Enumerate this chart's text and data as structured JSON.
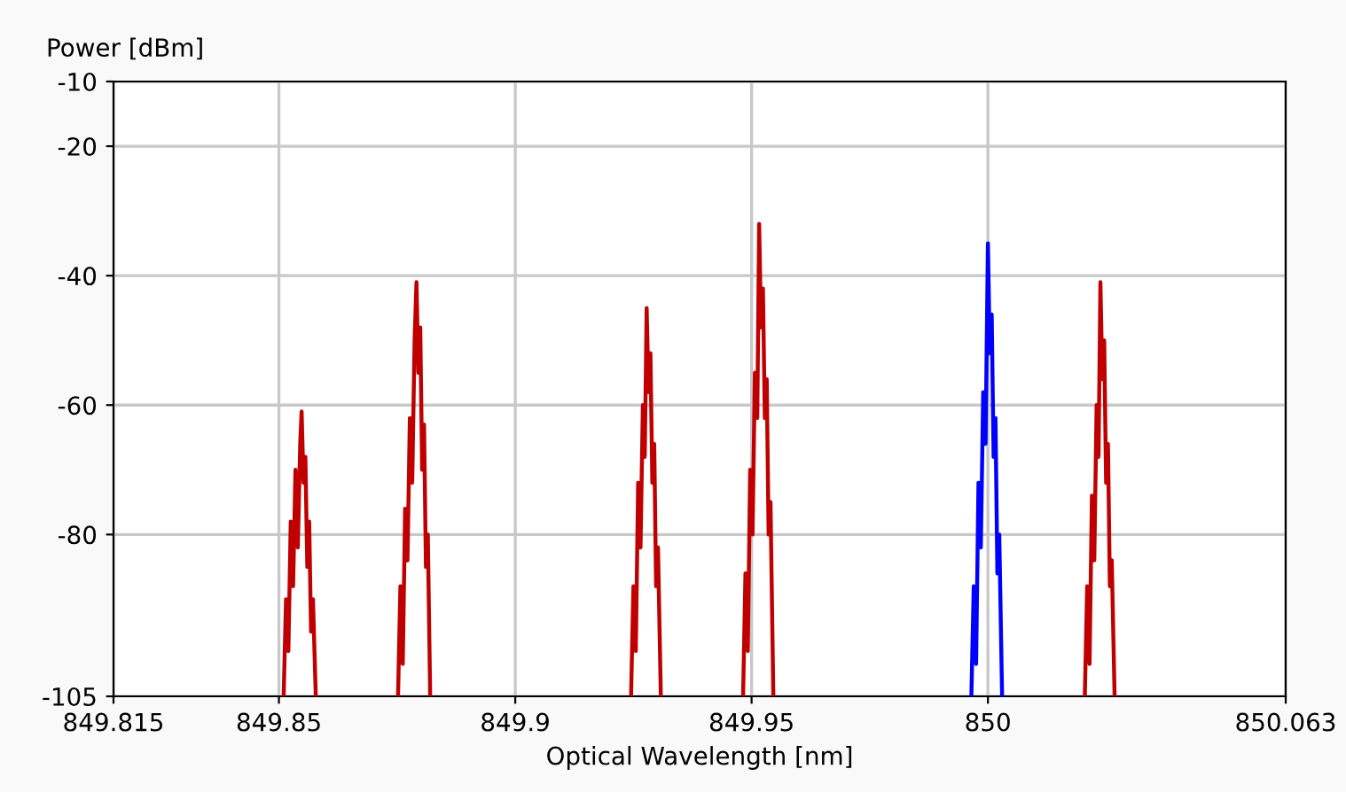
{
  "chart_data": {
    "type": "line",
    "xlabel": "Optical Wavelength [nm]",
    "ylabel": "Power [dBm]",
    "xlim": [
      849.815,
      850.063
    ],
    "xticks": [
      849.815,
      849.85,
      849.9,
      849.95,
      850,
      850.063
    ],
    "ylim": [
      -105,
      -10
    ],
    "yticks": [
      -10,
      -20,
      -40,
      -60,
      -80,
      -105
    ],
    "grid": true,
    "legend": false,
    "series": [
      {
        "color": "#c00000",
        "x": [
          849.851,
          849.8515,
          849.852,
          849.8525,
          849.853,
          849.8535,
          849.854,
          849.8545,
          849.8548,
          849.8552,
          849.8556,
          849.856,
          849.8564,
          849.8568,
          849.8572,
          849.8578,
          849.866,
          849.8752,
          849.8757,
          849.8762,
          849.8767,
          849.8772,
          849.8777,
          849.8782,
          849.8787,
          849.8791,
          849.8795,
          849.8799,
          849.8803,
          849.8807,
          849.8811,
          849.8815,
          849.882,
          849.9,
          849.9245,
          849.925,
          849.9255,
          849.926,
          849.9265,
          849.927,
          849.9274,
          849.9278,
          849.9282,
          849.9286,
          849.929,
          849.9294,
          849.9298,
          849.9302,
          849.9308,
          849.94,
          849.9482,
          849.9487,
          849.9492,
          849.9497,
          849.9502,
          849.9507,
          849.9512,
          849.9516,
          849.952,
          849.9524,
          849.9528,
          849.9532,
          849.9536,
          849.954,
          849.9546,
          849.99,
          850.0205,
          850.021,
          850.0215,
          850.022,
          850.0225,
          850.023,
          850.0234,
          850.0238,
          850.0242,
          850.0246,
          850.025,
          850.0254,
          850.0258,
          850.0262,
          850.0268
        ],
        "values": [
          -105,
          -90,
          -98,
          -78,
          -88,
          -70,
          -82,
          -66,
          -61,
          -72,
          -68,
          -85,
          -78,
          -95,
          -90,
          -105,
          null,
          -105,
          -88,
          -100,
          -76,
          -84,
          -62,
          -72,
          -50,
          -41,
          -55,
          -48,
          -70,
          -63,
          -85,
          -80,
          -105,
          null,
          -105,
          -88,
          -98,
          -72,
          -82,
          -60,
          -68,
          -45,
          -58,
          -52,
          -72,
          -66,
          -88,
          -82,
          -105,
          null,
          -105,
          -86,
          -98,
          -70,
          -80,
          -55,
          -62,
          -32,
          -48,
          -42,
          -62,
          -56,
          -80,
          -75,
          -105,
          null,
          -105,
          -88,
          -100,
          -74,
          -84,
          -60,
          -68,
          -41,
          -56,
          -50,
          -72,
          -66,
          -88,
          -84,
          -105
        ]
      },
      {
        "color": "#0000ff",
        "x": [
          849.9965,
          849.997,
          849.9975,
          849.998,
          849.9985,
          849.999,
          849.9995,
          850.0,
          850.0004,
          850.0008,
          850.0012,
          850.0016,
          850.002,
          850.0024,
          850.003
        ],
        "values": [
          -105,
          -88,
          -100,
          -72,
          -82,
          -58,
          -66,
          -35,
          -52,
          -46,
          -68,
          -62,
          -86,
          -80,
          -105
        ]
      }
    ]
  }
}
